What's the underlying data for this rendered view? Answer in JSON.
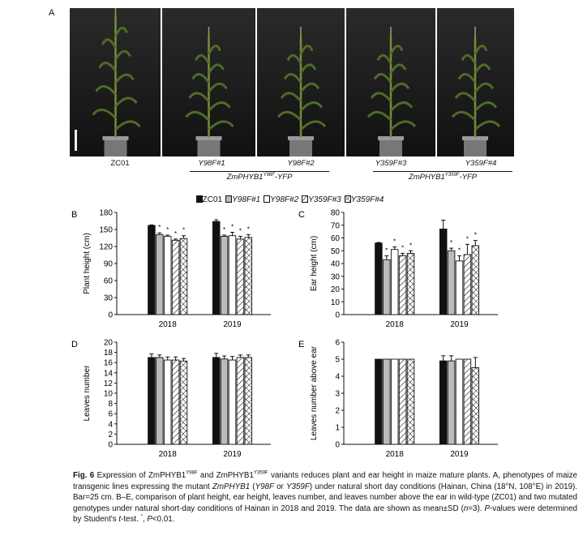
{
  "panel_a": {
    "letter": "A",
    "plant_labels": [
      "ZC01",
      "Y98F#1",
      "Y98F#2",
      "Y359F#3",
      "Y359F#4"
    ],
    "group_labels": [
      {
        "base": "ZmPHYB1",
        "sup": "Y98F",
        "suffix": "-YFP"
      },
      {
        "base": "ZmPHYB1",
        "sup": "Y359F",
        "suffix": "-YFP"
      }
    ]
  },
  "legend": {
    "items": [
      {
        "name": "ZC01",
        "pattern": "black",
        "italic": false
      },
      {
        "name": "Y98F#1",
        "pattern": "grey",
        "italic": true
      },
      {
        "name": "Y98F#2",
        "pattern": "white",
        "italic": true
      },
      {
        "name": "Y359F#3",
        "pattern": "hatch",
        "italic": true
      },
      {
        "name": "Y359F#4",
        "pattern": "crosshatch",
        "italic": true
      }
    ]
  },
  "chart_data": [
    {
      "letter": "B",
      "type": "bar",
      "ylabel": "Plant height (cm)",
      "categories": [
        "2018",
        "2019"
      ],
      "ylim": [
        0,
        180
      ],
      "yticks": [
        0,
        30,
        60,
        90,
        120,
        150,
        180
      ],
      "series": [
        {
          "name": "ZC01",
          "values": [
            157,
            164
          ],
          "errors": [
            1,
            3
          ]
        },
        {
          "name": "Y98F#1",
          "values": [
            141,
            138
          ],
          "errors": [
            3,
            2
          ]
        },
        {
          "name": "Y98F#2",
          "values": [
            138,
            139
          ],
          "errors": [
            2,
            6
          ]
        },
        {
          "name": "Y359F#3",
          "values": [
            131,
            133
          ],
          "errors": [
            2,
            5
          ]
        },
        {
          "name": "Y359F#4",
          "values": [
            134,
            136
          ],
          "errors": [
            5,
            5
          ]
        }
      ],
      "significant": [
        [
          false,
          true,
          true,
          true,
          true
        ],
        [
          false,
          true,
          true,
          true,
          true
        ]
      ]
    },
    {
      "letter": "C",
      "type": "bar",
      "ylabel": "Ear height (cm)",
      "categories": [
        "2018",
        "2019"
      ],
      "ylim": [
        0,
        80
      ],
      "yticks": [
        0,
        10,
        20,
        30,
        40,
        50,
        60,
        70,
        80
      ],
      "series": [
        {
          "name": "ZC01",
          "values": [
            56,
            67
          ],
          "errors": [
            0.5,
            7
          ]
        },
        {
          "name": "Y98F#1",
          "values": [
            43,
            50
          ],
          "errors": [
            3,
            2
          ]
        },
        {
          "name": "Y98F#2",
          "values": [
            51,
            42
          ],
          "errors": [
            2,
            4
          ]
        },
        {
          "name": "Y359F#3",
          "values": [
            46,
            47
          ],
          "errors": [
            2,
            8
          ]
        },
        {
          "name": "Y359F#4",
          "values": [
            48,
            54
          ],
          "errors": [
            2,
            4
          ]
        }
      ],
      "significant": [
        [
          false,
          true,
          true,
          true,
          true
        ],
        [
          false,
          true,
          true,
          true,
          true
        ]
      ]
    },
    {
      "letter": "D",
      "type": "bar",
      "ylabel": "Leaves number",
      "categories": [
        "2018",
        "2019"
      ],
      "ylim": [
        0,
        20
      ],
      "yticks": [
        0,
        2,
        4,
        6,
        8,
        10,
        12,
        14,
        16,
        18,
        20
      ],
      "series": [
        {
          "name": "ZC01",
          "values": [
            17,
            17
          ],
          "errors": [
            0.7,
            0.8
          ]
        },
        {
          "name": "Y98F#1",
          "values": [
            17,
            16.7
          ],
          "errors": [
            0.5,
            0.6
          ]
        },
        {
          "name": "Y98F#2",
          "values": [
            16.5,
            16.5
          ],
          "errors": [
            0.6,
            0.7
          ]
        },
        {
          "name": "Y359F#3",
          "values": [
            16.5,
            17
          ],
          "errors": [
            0.6,
            0.5
          ]
        },
        {
          "name": "Y359F#4",
          "values": [
            16.3,
            17
          ],
          "errors": [
            0.5,
            0.5
          ]
        }
      ],
      "significant": [
        [
          false,
          false,
          false,
          false,
          false
        ],
        [
          false,
          false,
          false,
          false,
          false
        ]
      ]
    },
    {
      "letter": "E",
      "type": "bar",
      "ylabel": "Leaves number above ear",
      "categories": [
        "2018",
        "2019"
      ],
      "ylim": [
        0,
        6
      ],
      "yticks": [
        0,
        1,
        2,
        3,
        4,
        5,
        6
      ],
      "series": [
        {
          "name": "ZC01",
          "values": [
            5,
            4.9
          ],
          "errors": [
            0,
            0.3
          ]
        },
        {
          "name": "Y98F#1",
          "values": [
            5,
            4.9
          ],
          "errors": [
            0,
            0.3
          ]
        },
        {
          "name": "Y98F#2",
          "values": [
            5,
            5
          ],
          "errors": [
            0,
            0
          ]
        },
        {
          "name": "Y359F#3",
          "values": [
            5,
            5
          ],
          "errors": [
            0,
            0
          ]
        },
        {
          "name": "Y359F#4",
          "values": [
            5,
            4.5
          ],
          "errors": [
            0,
            0.6
          ]
        }
      ],
      "significant": [
        [
          false,
          false,
          false,
          false,
          false
        ],
        [
          false,
          false,
          false,
          false,
          false
        ]
      ]
    }
  ],
  "caption": {
    "label": "Fig. 6",
    "seg1": " Expression of ZmPHYB1",
    "sup1": "Y98F",
    "seg2": " and ZmPHYB1",
    "sup2": "Y359F",
    "seg3": " variants reduces plant and ear height in maize mature plants.  A, phenotypes of maize transgenic lines expressing the mutant ",
    "it1": "ZmPHYB1",
    "seg4": " (",
    "it2": "Y98F",
    "seg5": " or ",
    "it3": "Y359F",
    "seg6": ") under natural short day conditions (Hainan, China (18°N, 108°E) in 2019).  Bar=25 cm.  B–E, comparison of plant height, ear height, leaves number, and leaves number above the ear in wild-type (ZC01) and two mutated genotypes under natural short-day conditions of Hainan in 2018 and 2019.  The data are shown as mean±SD (",
    "it4": "n",
    "seg7": "=3).  ",
    "it5": "P",
    "seg8": "-values were determined by Student's ",
    "it6": "t",
    "seg9": "-test.  ",
    "sup3": "*",
    "seg10": ", ",
    "it7": "P",
    "seg11": "<0.01."
  }
}
